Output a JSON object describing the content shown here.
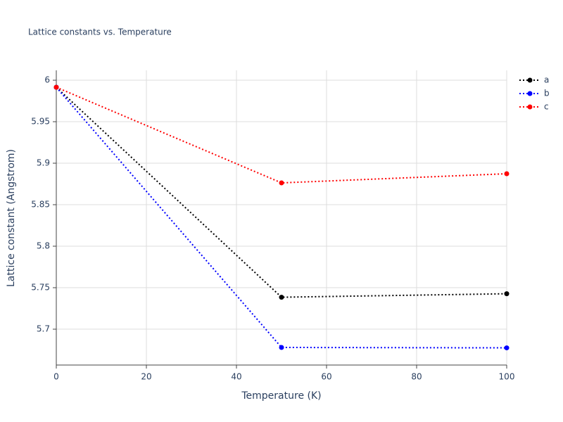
{
  "chart_data": {
    "type": "line",
    "title": "Lattice constants vs. Temperature",
    "x_label": "Temperature (K)",
    "y_label": "Lattice constant (Angstrom)",
    "x": [
      0,
      50,
      100
    ],
    "series": [
      {
        "name": "a",
        "color": "#000000",
        "values": [
          5.9915,
          5.7385,
          5.7427
        ]
      },
      {
        "name": "b",
        "color": "#0000ff",
        "values": [
          5.9915,
          5.678,
          5.6775
        ]
      },
      {
        "name": "c",
        "color": "#ff0000",
        "values": [
          5.9915,
          5.8763,
          5.8873
        ]
      }
    ],
    "xlim": [
      0,
      100
    ],
    "xticks": [
      0,
      20,
      40,
      60,
      80,
      100
    ],
    "ylim": [
      5.6568,
      6.0119
    ],
    "yticks": [
      5.7,
      5.75,
      5.8,
      5.85,
      5.9,
      5.95,
      6
    ],
    "grid": true,
    "legend": "top-right"
  }
}
